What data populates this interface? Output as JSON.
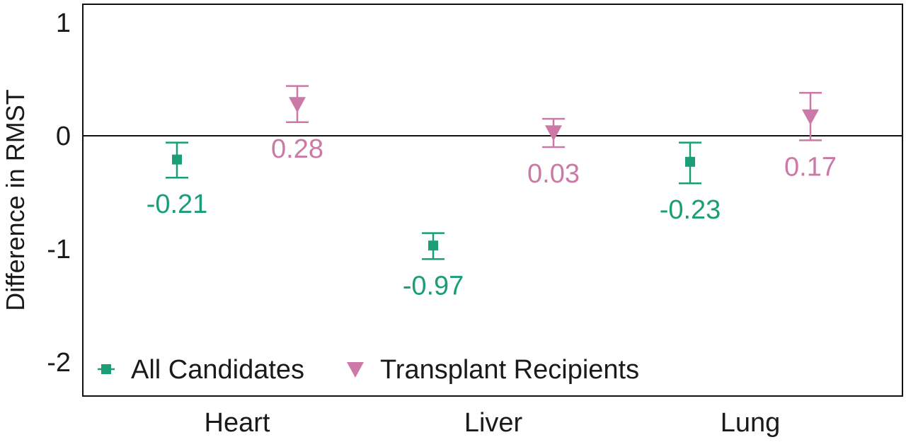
{
  "chart_data": {
    "type": "scatter",
    "ylabel": "Difference in RMST",
    "xlabel": "",
    "categories": [
      "Heart",
      "Liver",
      "Lung"
    ],
    "ylim": [
      -2.2,
      1.1
    ],
    "yticks": [
      1,
      0,
      -1,
      -2
    ],
    "ytick_labels": [
      "1",
      "0",
      "-1",
      "-2"
    ],
    "reference_line": 0,
    "legend_position": "bottom-left",
    "series": [
      {
        "name": "All Candidates",
        "marker": "square",
        "color": "#1b9e77",
        "values": [
          -0.21,
          -0.97,
          -0.23
        ],
        "lower": [
          -0.37,
          -1.09,
          -0.42
        ],
        "upper": [
          -0.06,
          -0.86,
          -0.06
        ],
        "labels": [
          "-0.21",
          "-0.97",
          "-0.23"
        ]
      },
      {
        "name": "Transplant Recipients",
        "marker": "triangle-down",
        "color": "#cc79a7",
        "values": [
          0.28,
          0.03,
          0.17
        ],
        "lower": [
          0.12,
          -0.1,
          -0.04
        ],
        "upper": [
          0.44,
          0.15,
          0.38
        ],
        "labels": [
          "0.28",
          "0.03",
          "0.17"
        ]
      }
    ]
  }
}
